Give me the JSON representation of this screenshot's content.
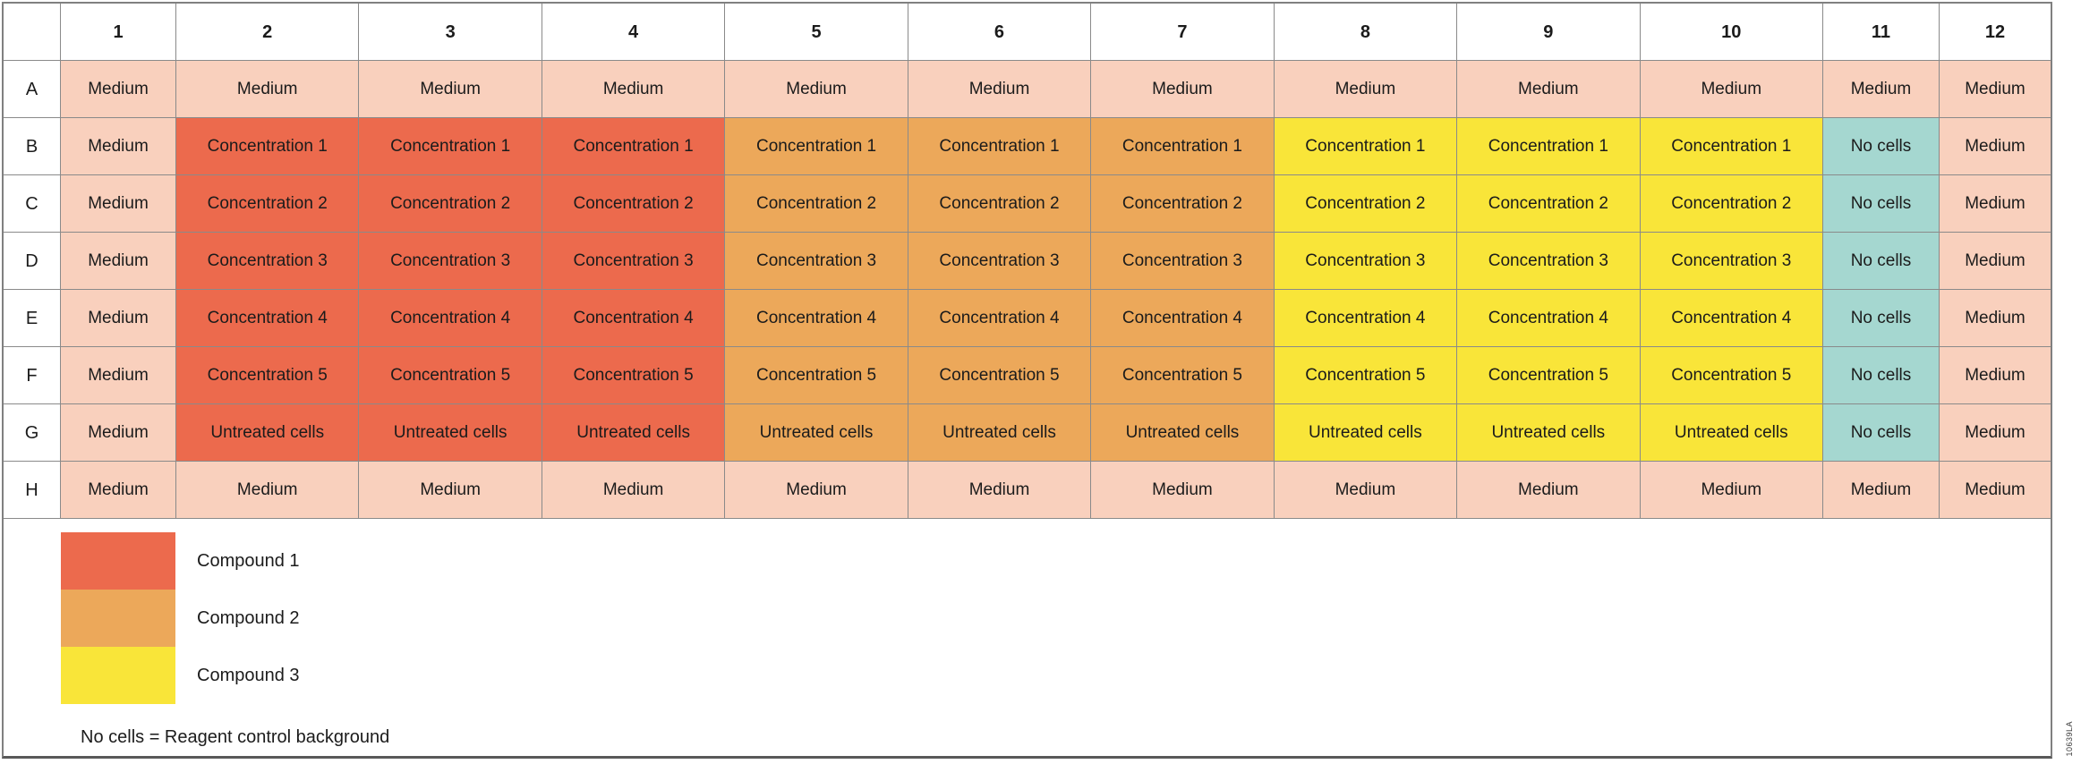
{
  "colors": {
    "medium": "#F9D0BD",
    "compound1": "#EC6A4D",
    "compound2": "#ECA85A",
    "compound3": "#F9E539",
    "no_cells": "#A5D7D0",
    "grid_line": "#8a8a8a",
    "frame_border": "#808080"
  },
  "plate": {
    "column_headers": [
      "1",
      "2",
      "3",
      "4",
      "5",
      "6",
      "7",
      "8",
      "9",
      "10",
      "11",
      "12"
    ],
    "rows": [
      {
        "label": "A",
        "cells": [
          {
            "text": "Medium",
            "type": "medium"
          },
          {
            "text": "Medium",
            "type": "medium"
          },
          {
            "text": "Medium",
            "type": "medium"
          },
          {
            "text": "Medium",
            "type": "medium"
          },
          {
            "text": "Medium",
            "type": "medium"
          },
          {
            "text": "Medium",
            "type": "medium"
          },
          {
            "text": "Medium",
            "type": "medium"
          },
          {
            "text": "Medium",
            "type": "medium"
          },
          {
            "text": "Medium",
            "type": "medium"
          },
          {
            "text": "Medium",
            "type": "medium"
          },
          {
            "text": "Medium",
            "type": "medium"
          },
          {
            "text": "Medium",
            "type": "medium"
          }
        ]
      },
      {
        "label": "B",
        "cells": [
          {
            "text": "Medium",
            "type": "medium"
          },
          {
            "text": "Concentration 1",
            "type": "compound1"
          },
          {
            "text": "Concentration 1",
            "type": "compound1"
          },
          {
            "text": "Concentration 1",
            "type": "compound1"
          },
          {
            "text": "Concentration 1",
            "type": "compound2"
          },
          {
            "text": "Concentration 1",
            "type": "compound2"
          },
          {
            "text": "Concentration 1",
            "type": "compound2"
          },
          {
            "text": "Concentration 1",
            "type": "compound3"
          },
          {
            "text": "Concentration 1",
            "type": "compound3"
          },
          {
            "text": "Concentration 1",
            "type": "compound3"
          },
          {
            "text": "No cells",
            "type": "no_cells"
          },
          {
            "text": "Medium",
            "type": "medium"
          }
        ]
      },
      {
        "label": "C",
        "cells": [
          {
            "text": "Medium",
            "type": "medium"
          },
          {
            "text": "Concentration 2",
            "type": "compound1"
          },
          {
            "text": "Concentration 2",
            "type": "compound1"
          },
          {
            "text": "Concentration 2",
            "type": "compound1"
          },
          {
            "text": "Concentration 2",
            "type": "compound2"
          },
          {
            "text": "Concentration 2",
            "type": "compound2"
          },
          {
            "text": "Concentration 2",
            "type": "compound2"
          },
          {
            "text": "Concentration 2",
            "type": "compound3"
          },
          {
            "text": "Concentration 2",
            "type": "compound3"
          },
          {
            "text": "Concentration 2",
            "type": "compound3"
          },
          {
            "text": "No cells",
            "type": "no_cells"
          },
          {
            "text": "Medium",
            "type": "medium"
          }
        ]
      },
      {
        "label": "D",
        "cells": [
          {
            "text": "Medium",
            "type": "medium"
          },
          {
            "text": "Concentration 3",
            "type": "compound1"
          },
          {
            "text": "Concentration 3",
            "type": "compound1"
          },
          {
            "text": "Concentration 3",
            "type": "compound1"
          },
          {
            "text": "Concentration 3",
            "type": "compound2"
          },
          {
            "text": "Concentration 3",
            "type": "compound2"
          },
          {
            "text": "Concentration 3",
            "type": "compound2"
          },
          {
            "text": "Concentration 3",
            "type": "compound3"
          },
          {
            "text": "Concentration 3",
            "type": "compound3"
          },
          {
            "text": "Concentration 3",
            "type": "compound3"
          },
          {
            "text": "No cells",
            "type": "no_cells"
          },
          {
            "text": "Medium",
            "type": "medium"
          }
        ]
      },
      {
        "label": "E",
        "cells": [
          {
            "text": "Medium",
            "type": "medium"
          },
          {
            "text": "Concentration 4",
            "type": "compound1"
          },
          {
            "text": "Concentration 4",
            "type": "compound1"
          },
          {
            "text": "Concentration 4",
            "type": "compound1"
          },
          {
            "text": "Concentration 4",
            "type": "compound2"
          },
          {
            "text": "Concentration 4",
            "type": "compound2"
          },
          {
            "text": "Concentration 4",
            "type": "compound2"
          },
          {
            "text": "Concentration 4",
            "type": "compound3"
          },
          {
            "text": "Concentration 4",
            "type": "compound3"
          },
          {
            "text": "Concentration 4",
            "type": "compound3"
          },
          {
            "text": "No cells",
            "type": "no_cells"
          },
          {
            "text": "Medium",
            "type": "medium"
          }
        ]
      },
      {
        "label": "F",
        "cells": [
          {
            "text": "Medium",
            "type": "medium"
          },
          {
            "text": "Concentration 5",
            "type": "compound1"
          },
          {
            "text": "Concentration 5",
            "type": "compound1"
          },
          {
            "text": "Concentration 5",
            "type": "compound1"
          },
          {
            "text": "Concentration 5",
            "type": "compound2"
          },
          {
            "text": "Concentration 5",
            "type": "compound2"
          },
          {
            "text": "Concentration 5",
            "type": "compound2"
          },
          {
            "text": "Concentration 5",
            "type": "compound3"
          },
          {
            "text": "Concentration 5",
            "type": "compound3"
          },
          {
            "text": "Concentration 5",
            "type": "compound3"
          },
          {
            "text": "No cells",
            "type": "no_cells"
          },
          {
            "text": "Medium",
            "type": "medium"
          }
        ]
      },
      {
        "label": "G",
        "cells": [
          {
            "text": "Medium",
            "type": "medium"
          },
          {
            "text": "Untreated cells",
            "type": "compound1"
          },
          {
            "text": "Untreated cells",
            "type": "compound1"
          },
          {
            "text": "Untreated cells",
            "type": "compound1"
          },
          {
            "text": "Untreated cells",
            "type": "compound2"
          },
          {
            "text": "Untreated cells",
            "type": "compound2"
          },
          {
            "text": "Untreated cells",
            "type": "compound2"
          },
          {
            "text": "Untreated cells",
            "type": "compound3"
          },
          {
            "text": "Untreated cells",
            "type": "compound3"
          },
          {
            "text": "Untreated cells",
            "type": "compound3"
          },
          {
            "text": "No cells",
            "type": "no_cells"
          },
          {
            "text": "Medium",
            "type": "medium"
          }
        ]
      },
      {
        "label": "H",
        "cells": [
          {
            "text": "Medium",
            "type": "medium"
          },
          {
            "text": "Medium",
            "type": "medium"
          },
          {
            "text": "Medium",
            "type": "medium"
          },
          {
            "text": "Medium",
            "type": "medium"
          },
          {
            "text": "Medium",
            "type": "medium"
          },
          {
            "text": "Medium",
            "type": "medium"
          },
          {
            "text": "Medium",
            "type": "medium"
          },
          {
            "text": "Medium",
            "type": "medium"
          },
          {
            "text": "Medium",
            "type": "medium"
          },
          {
            "text": "Medium",
            "type": "medium"
          },
          {
            "text": "Medium",
            "type": "medium"
          },
          {
            "text": "Medium",
            "type": "medium"
          }
        ]
      }
    ]
  },
  "legend": {
    "items": [
      {
        "label": "Compound 1",
        "type": "compound1"
      },
      {
        "label": "Compound 2",
        "type": "compound2"
      },
      {
        "label": "Compound 3",
        "type": "compound3"
      }
    ],
    "note": "No cells = Reagent control background"
  },
  "figure_code": "10639LA"
}
